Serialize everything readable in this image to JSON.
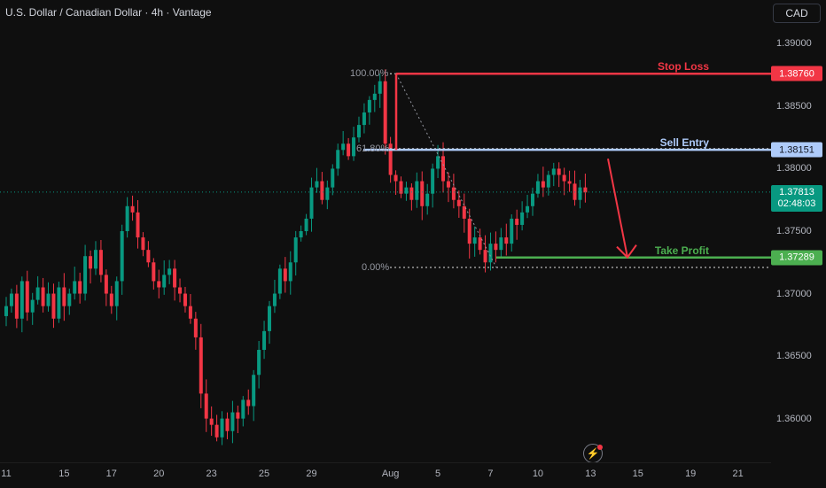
{
  "header": {
    "title": "U.S. Dollar / Canadian Dollar · 4h · Vantage"
  },
  "currency_button": {
    "label": "CAD"
  },
  "price_axis": {
    "ticks": [
      {
        "label": "1.39000",
        "value": 1.39
      },
      {
        "label": "1.38500",
        "value": 1.385
      },
      {
        "label": "1.38000",
        "value": 1.38
      },
      {
        "label": "1.37500",
        "value": 1.375
      },
      {
        "label": "1.37000",
        "value": 1.37
      },
      {
        "label": "1.36500",
        "value": 1.365
      },
      {
        "label": "1.36000",
        "value": 1.36
      }
    ]
  },
  "levels": {
    "stop_loss": {
      "text": "Stop Loss",
      "price": 1.3876,
      "label": "1.38760",
      "color": "#f23645"
    },
    "sell_entry": {
      "text": "Sell Entry",
      "price": 1.38151,
      "label": "1.38151",
      "color": "#aecbfa"
    },
    "take_profit": {
      "text": "Take Profit",
      "price": 1.37289,
      "label": "1.37289",
      "color": "#4caf50"
    }
  },
  "current_price": {
    "price": 1.37813,
    "label": "1.37813",
    "countdown": "02:48:03",
    "color": "#089981"
  },
  "fib": [
    {
      "label": "100.00%",
      "price": 1.3876
    },
    {
      "label": "61.80%",
      "price": 1.3816
    },
    {
      "label": "0.00%",
      "price": 1.3721
    }
  ],
  "time_axis": [
    {
      "label": "11",
      "bar": 0
    },
    {
      "label": "15",
      "bar": 11
    },
    {
      "label": "17",
      "bar": 20
    },
    {
      "label": "20",
      "bar": 29
    },
    {
      "label": "23",
      "bar": 39
    },
    {
      "label": "25",
      "bar": 49
    },
    {
      "label": "29",
      "bar": 58
    },
    {
      "label": "Aug",
      "bar": 73
    },
    {
      "label": "5",
      "bar": 82
    },
    {
      "label": "7",
      "bar": 92
    },
    {
      "label": "10",
      "bar": 101
    },
    {
      "label": "13",
      "bar": 111
    },
    {
      "label": "15",
      "bar": 120
    },
    {
      "label": "19",
      "bar": 130
    },
    {
      "label": "21",
      "bar": 139
    }
  ],
  "colors": {
    "up": "#089981",
    "down": "#f23645",
    "arrow": "#f23645"
  },
  "chart_data": {
    "type": "candlestick",
    "symbol": "USDCAD",
    "interval": "4h",
    "ylim": [
      1.3565,
      1.3935
    ],
    "closes": [
      1.369,
      1.37,
      1.368,
      1.371,
      1.3685,
      1.3695,
      1.3705,
      1.369,
      1.37,
      1.368,
      1.3705,
      1.369,
      1.37,
      1.371,
      1.37,
      1.373,
      1.372,
      1.3735,
      1.3715,
      1.37,
      1.369,
      1.371,
      1.375,
      1.377,
      1.3765,
      1.3745,
      1.3735,
      1.3725,
      1.371,
      1.3705,
      1.3715,
      1.372,
      1.3705,
      1.37,
      1.369,
      1.368,
      1.3665,
      1.362,
      1.36,
      1.3595,
      1.3585,
      1.36,
      1.359,
      1.3605,
      1.36,
      1.3615,
      1.361,
      1.3635,
      1.3655,
      1.367,
      1.369,
      1.37,
      1.372,
      1.371,
      1.3725,
      1.3745,
      1.375,
      1.376,
      1.3785,
      1.379,
      1.3775,
      1.3785,
      1.38,
      1.3815,
      1.382,
      1.381,
      1.3825,
      1.3835,
      1.3845,
      1.3855,
      1.386,
      1.387,
      1.382,
      1.3795,
      1.379,
      1.378,
      1.3785,
      1.3775,
      1.379,
      1.377,
      1.378,
      1.38,
      1.381,
      1.379,
      1.3785,
      1.3775,
      1.377,
      1.376,
      1.374,
      1.3745,
      1.3735,
      1.3725,
      1.374,
      1.3735,
      1.3745,
      1.374,
      1.376,
      1.3755,
      1.3765,
      1.377,
      1.378,
      1.379,
      1.3785,
      1.3795,
      1.38,
      1.3795,
      1.379,
      1.3788,
      1.3775,
      1.3785,
      1.3781
    ]
  }
}
